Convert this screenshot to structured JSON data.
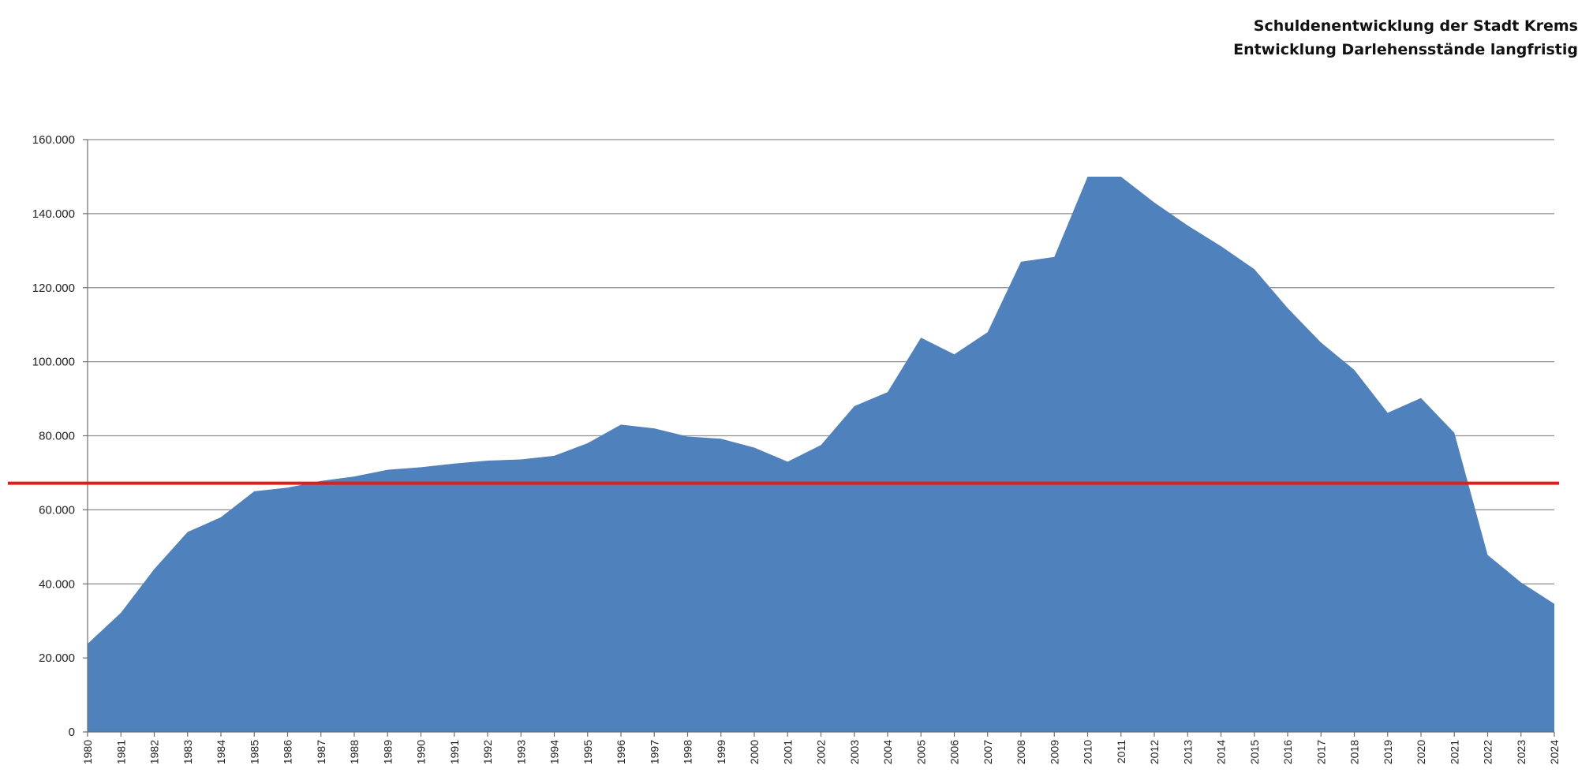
{
  "title_lines": [
    "Schuldenentwicklung der Stadt Krems",
    "Entwicklung Darlehensstände langfristig"
  ],
  "chart_data": {
    "type": "area",
    "title": "Schuldenentwicklung der Stadt Krems",
    "subtitle": "Entwicklung Darlehensstände langfristig",
    "xlabel": "",
    "ylabel": "",
    "ylim": [
      0,
      160000
    ],
    "yticks": [
      0,
      20000,
      40000,
      60000,
      80000,
      100000,
      120000,
      140000,
      160000
    ],
    "ytick_labels": [
      "0",
      "20.000",
      "40.000",
      "60.000",
      "80.000",
      "100.000",
      "120.000",
      "140.000",
      "160.000"
    ],
    "grid": true,
    "categories": [
      "1980",
      "1981",
      "1982",
      "1983",
      "1984",
      "1985",
      "1986",
      "1987",
      "1988",
      "1989",
      "1990",
      "1991",
      "1992",
      "1993",
      "1994",
      "1995",
      "1996",
      "1997",
      "1998",
      "1999",
      "2000",
      "2001",
      "2002",
      "2003",
      "2004",
      "2005",
      "2006",
      "2007",
      "2008",
      "2009",
      "2010",
      "2011",
      "2012",
      "2013",
      "2014",
      "2015",
      "2016",
      "2017",
      "2018",
      "2019",
      "2020",
      "2021",
      "2022",
      "2023",
      "2024"
    ],
    "series": [
      {
        "values": [
          23800,
          32200,
          44000,
          54000,
          58000,
          65000,
          66000,
          67800,
          69000,
          70800,
          71500,
          72500,
          73300,
          73600,
          74600,
          78000,
          83000,
          82000,
          79800,
          79200,
          76800,
          73000,
          77500,
          88000,
          91800,
          106500,
          102000,
          108000,
          127000,
          128300,
          150000,
          150000,
          143000,
          136800,
          131200,
          125000,
          114500,
          105200,
          97800,
          86200,
          90200,
          80800,
          47800,
          40400,
          34600
        ],
        "color": "#4f81bd"
      }
    ],
    "reference_line": {
      "value": 67200,
      "color": "#e41a1c"
    }
  }
}
